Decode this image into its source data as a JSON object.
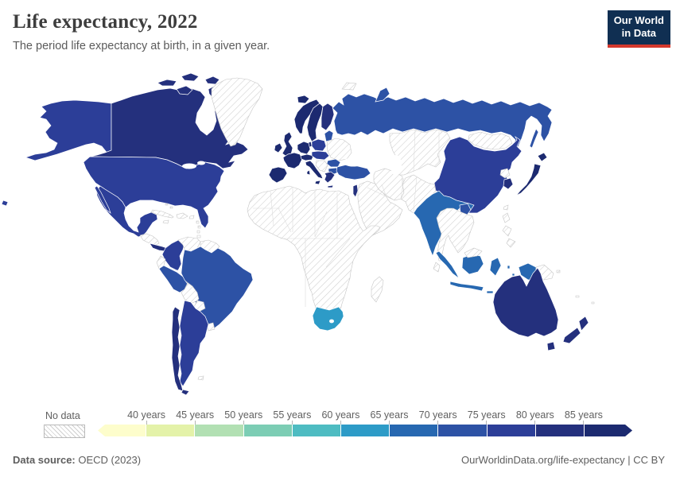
{
  "header": {
    "title": "Life expectancy, 2022",
    "subtitle": "The period life expectancy at birth, in a given year."
  },
  "logo": {
    "line1": "Our World",
    "line2": "in Data",
    "bg": "#102f52",
    "accent": "#d4382c"
  },
  "legend": {
    "no_data_label": "No data",
    "tick_labels": [
      "40 years",
      "45 years",
      "50 years",
      "55 years",
      "60 years",
      "65 years",
      "70 years",
      "75 years",
      "80 years",
      "85 years"
    ],
    "colors": [
      "#fdfdcc",
      "#e4f2a9",
      "#b2e0b3",
      "#7ccdb4",
      "#4ebcc2",
      "#2d9bc7",
      "#2768b1",
      "#2d52a5",
      "#2c3e98",
      "#24307d",
      "#1c2a70"
    ]
  },
  "footer": {
    "source_label": "Data source:",
    "source_value": " OECD (2023)",
    "right_text": "OurWorldinData.org/life-expectancy | CC BY"
  },
  "chart_data": {
    "type": "heatmap",
    "subtype": "choropleth_world_map",
    "title": "Life expectancy, 2022",
    "unit": "years",
    "legend_buckets": [
      "<40",
      "40-45",
      "45-50",
      "50-55",
      "55-60",
      "60-65",
      "65-70",
      "70-75",
      "75-80",
      "80-85",
      "85+"
    ],
    "series": [
      {
        "bucket": "85+ years",
        "color": "#1c2a70",
        "countries": [
          "France",
          "Spain",
          "Portugal",
          "Italy",
          "Switzerland",
          "Germany",
          "United Kingdom",
          "Ireland",
          "Norway",
          "Sweden",
          "Denmark",
          "Iceland",
          "Japan"
        ]
      },
      {
        "bucket": "80-85 years",
        "color": "#24307d",
        "countries": [
          "Canada",
          "Australia",
          "New Zealand",
          "South Korea",
          "Finland",
          "Greece",
          "Israel",
          "Chile",
          "Costa Rica",
          "Tasmania"
        ]
      },
      {
        "bucket": "75-80 years",
        "color": "#2c3e98",
        "countries": [
          "United States",
          "Mexico",
          "Colombia",
          "Argentina",
          "China",
          "Poland",
          "Czechia",
          "Hungary",
          "Slovakia"
        ]
      },
      {
        "bucket": "70-75 years",
        "color": "#2d52a5",
        "countries": [
          "Russia",
          "Turkey",
          "Brazil",
          "Peru",
          "Baltic states",
          "Romania",
          "Bulgaria",
          "Bangladesh"
        ]
      },
      {
        "bucket": "65-70 years",
        "color": "#2768b1",
        "countries": [
          "India",
          "Indonesia"
        ]
      },
      {
        "bucket": "60-65 years",
        "color": "#2d9bc7",
        "countries": [
          "South Africa"
        ]
      }
    ],
    "no_data_regions": [
      "Greenland",
      "most of Africa",
      "Middle East",
      "Central Asia",
      "Mongolia",
      "Southeast Asia",
      "Ukraine",
      "Belarus",
      "Venezuela",
      "Bolivia",
      "Paraguay",
      "Uruguay",
      "Ecuador",
      "Cuba",
      "Caribbean islands",
      "Madagascar",
      "Papua New Guinea",
      "Sri Lanka",
      "Philippines",
      "North Korea"
    ]
  }
}
